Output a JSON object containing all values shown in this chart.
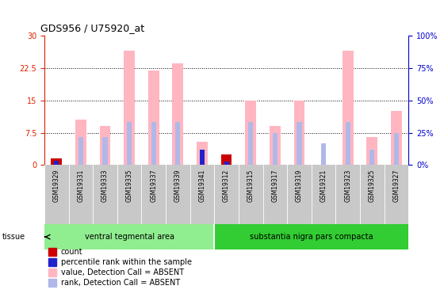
{
  "title": "GDS956 / U75920_at",
  "samples": [
    "GSM19329",
    "GSM19331",
    "GSM19333",
    "GSM19335",
    "GSM19337",
    "GSM19339",
    "GSM19341",
    "GSM19312",
    "GSM19315",
    "GSM19317",
    "GSM19319",
    "GSM19321",
    "GSM19323",
    "GSM19325",
    "GSM19327"
  ],
  "absent_value": [
    1.5,
    10.5,
    9.0,
    26.5,
    22.0,
    23.5,
    5.5,
    2.5,
    15.0,
    9.0,
    15.0,
    0.0,
    26.5,
    6.5,
    12.5
  ],
  "absent_rank": [
    1.2,
    6.5,
    6.5,
    10.0,
    10.0,
    10.0,
    0.0,
    1.2,
    10.0,
    7.5,
    10.0,
    5.0,
    10.0,
    3.5,
    7.5
  ],
  "present_value": [
    1.5,
    0.0,
    0.0,
    0.0,
    0.0,
    0.0,
    0.0,
    2.5,
    0.0,
    0.0,
    0.0,
    0.0,
    0.0,
    0.0,
    0.0
  ],
  "present_rank": [
    1.0,
    0.0,
    0.0,
    0.0,
    0.0,
    0.0,
    3.5,
    0.8,
    0.0,
    0.0,
    0.0,
    0.0,
    0.0,
    0.0,
    0.0
  ],
  "groups": [
    {
      "label": "ventral tegmental area",
      "start": 0,
      "end": 7,
      "color": "#90EE90"
    },
    {
      "label": "substantia nigra pars compacta",
      "start": 7,
      "end": 15,
      "color": "#32CD32"
    }
  ],
  "ylim_left": [
    0,
    30
  ],
  "ylim_right": [
    0,
    100
  ],
  "yticks_left": [
    0,
    7.5,
    15,
    22.5,
    30
  ],
  "yticks_right": [
    0,
    25,
    50,
    75,
    100
  ],
  "ytick_labels_left": [
    "0",
    "7.5",
    "15",
    "22.5",
    "30"
  ],
  "ytick_labels_right": [
    "0%",
    "25%",
    "50%",
    "75%",
    "100%"
  ],
  "left_tick_color": "#DD2200",
  "right_tick_color": "#0000CC",
  "grid_dotted": [
    7.5,
    15,
    22.5
  ],
  "bar_width": 0.45,
  "absent_bar_color": "#FFB6C1",
  "absent_rank_color": "#B0B8E8",
  "present_bar_color": "#CC0000",
  "present_rank_color": "#2222CC",
  "legend_items": [
    {
      "color": "#CC0000",
      "marker": "s",
      "label": "count"
    },
    {
      "color": "#2222CC",
      "marker": "s",
      "label": "percentile rank within the sample"
    },
    {
      "color": "#FFB6C1",
      "marker": "s",
      "label": "value, Detection Call = ABSENT"
    },
    {
      "color": "#B0B8E8",
      "marker": "s",
      "label": "rank, Detection Call = ABSENT"
    }
  ]
}
